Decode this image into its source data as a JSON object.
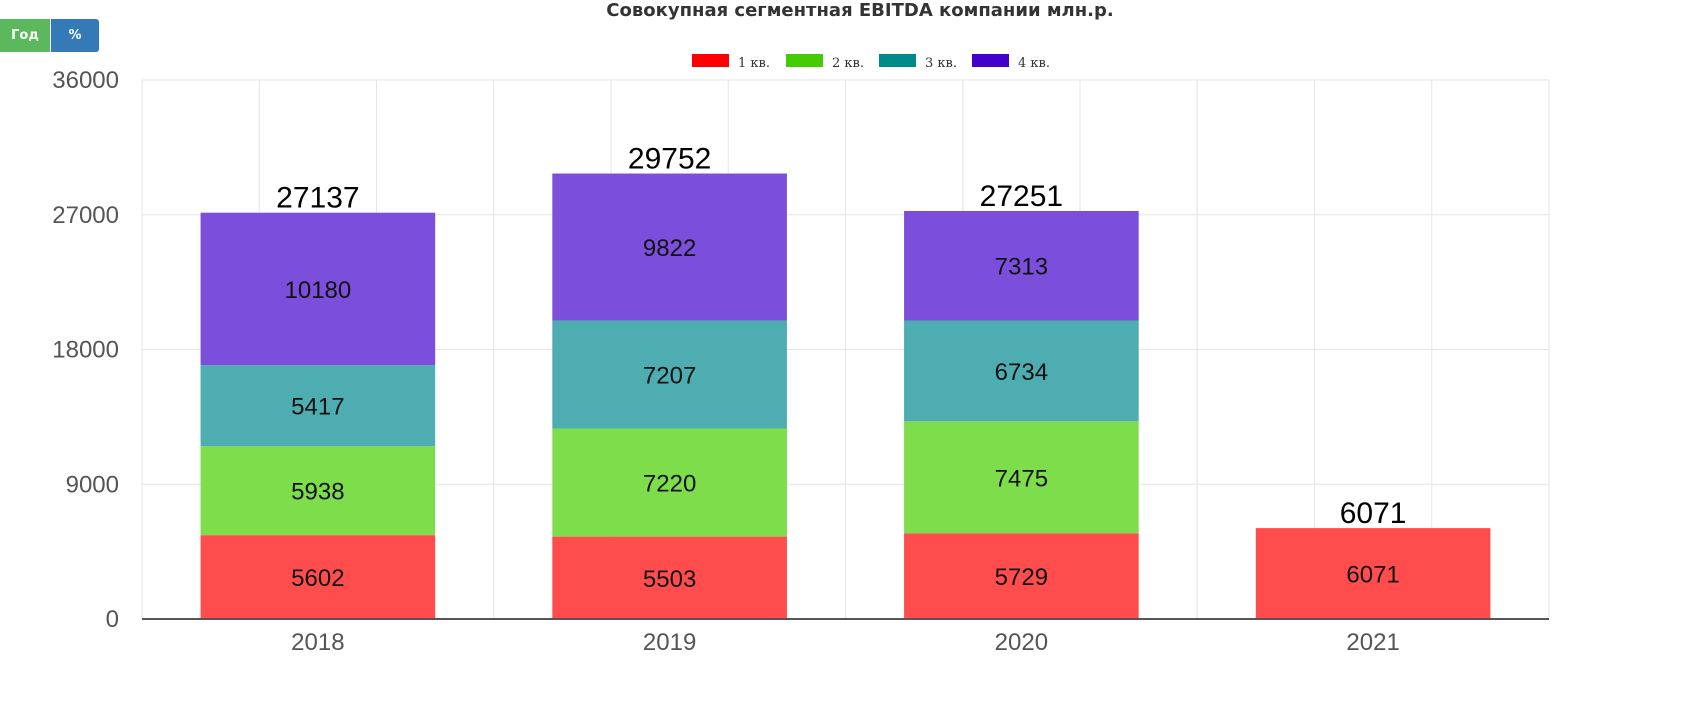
{
  "toolbar": {
    "year_label": "Год",
    "percent_label": "%"
  },
  "chart_data": {
    "type": "bar",
    "stacked": true,
    "title": "Совокупная сегментная EBITDA компании млн.р.",
    "categories": [
      "2018",
      "2019",
      "2020",
      "2021"
    ],
    "series": [
      {
        "name": "1 кв.",
        "color": "#ff4d4d",
        "legend_color": "#ff0000",
        "values": [
          5602,
          5503,
          5729,
          6071
        ]
      },
      {
        "name": "2 кв.",
        "color": "#7ddd4b",
        "legend_color": "#44cc00",
        "values": [
          5938,
          7220,
          7475,
          null
        ]
      },
      {
        "name": "3 кв.",
        "color": "#4eadb0",
        "legend_color": "#008b8b",
        "values": [
          5417,
          7207,
          6734,
          null
        ]
      },
      {
        "name": "4 кв.",
        "color": "#7b4fdc",
        "legend_color": "#4400cc",
        "values": [
          10180,
          9822,
          7313,
          null
        ]
      }
    ],
    "totals": [
      27137,
      29752,
      27251,
      6071
    ],
    "ylim": [
      0,
      36000
    ],
    "yticks": [
      0,
      9000,
      18000,
      27000,
      36000
    ],
    "xlabel": "",
    "ylabel": "",
    "grid": true,
    "legend_position": "top-center"
  }
}
